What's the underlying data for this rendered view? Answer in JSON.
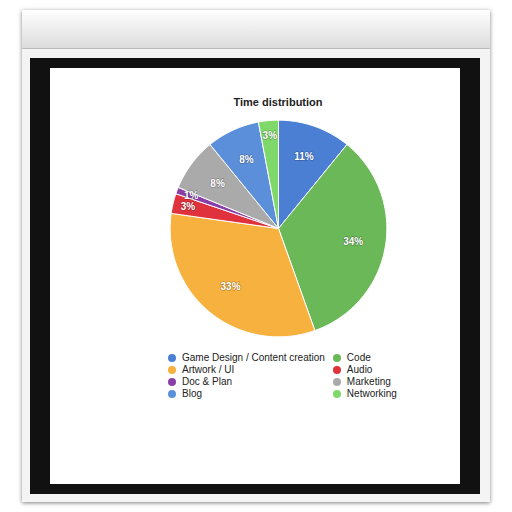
{
  "chart_data": {
    "type": "pie",
    "title": "Time distribution",
    "categories": [
      "Game Design / Content creation",
      "Code",
      "Artwork / UI",
      "Audio",
      "Doc & Plan",
      "Marketing",
      "Blog",
      "Networking"
    ],
    "values": [
      11,
      34,
      33,
      3,
      1,
      8,
      8,
      3
    ],
    "value_labels": [
      "11%",
      "34%",
      "33%",
      "3%",
      "1%",
      "8%",
      "8%",
      "3%"
    ],
    "colors": [
      "#4a7fd4",
      "#6ab858",
      "#f7b13e",
      "#e0323c",
      "#8a3fa8",
      "#aaaaaa",
      "#5b8fd9",
      "#7fd86a"
    ],
    "data_labels": true,
    "legend": "bottom"
  }
}
